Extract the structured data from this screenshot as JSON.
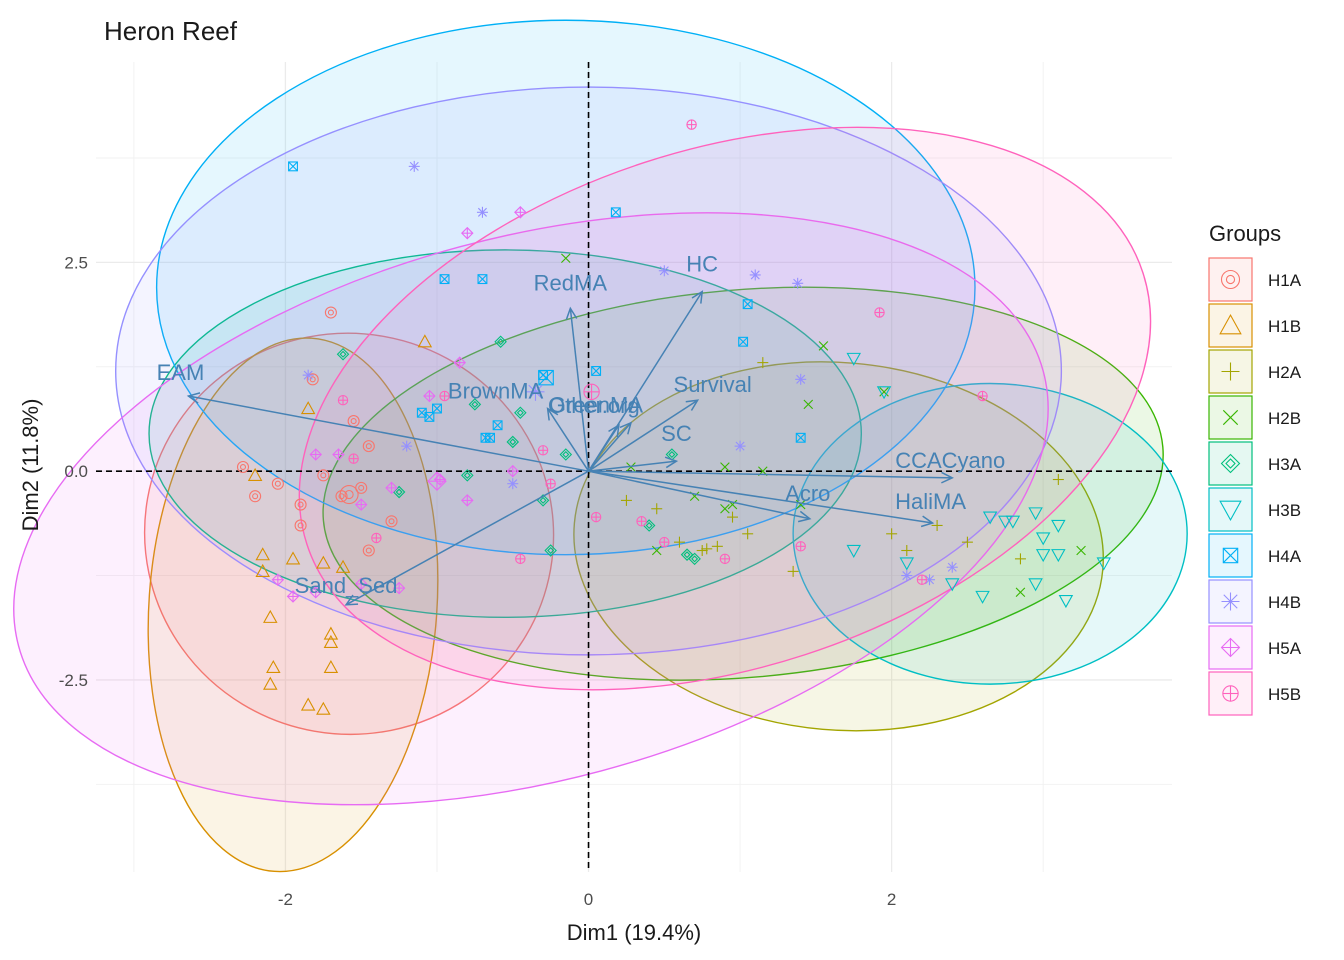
{
  "chart_data": {
    "type": "scatter",
    "title": "Heron Reef",
    "xlabel": "Dim1 (19.4%)",
    "ylabel": "Dim2 (11.8%)",
    "xlim": [
      -3.25,
      3.85
    ],
    "ylim": [
      -4.8,
      4.9
    ],
    "xticks": [
      -2,
      0,
      2
    ],
    "xtick_labels": [
      "-2",
      "0",
      "2"
    ],
    "yticks": [
      2.5,
      0.0,
      -2.5
    ],
    "ytick_labels": [
      "2.5",
      "0.0",
      "-2.5"
    ],
    "grid": true,
    "reference_lines": {
      "x": 0,
      "y": 0,
      "style": "dashed"
    },
    "legend": {
      "title": "Groups",
      "position": "right",
      "entries": [
        {
          "name": "H1A",
          "color": "#F8766D",
          "shape": "circle"
        },
        {
          "name": "H1B",
          "color": "#D89000",
          "shape": "triangle"
        },
        {
          "name": "H2A",
          "color": "#A3A500",
          "shape": "plus"
        },
        {
          "name": "H2B",
          "color": "#39B600",
          "shape": "cross"
        },
        {
          "name": "H3A",
          "color": "#00BF7D",
          "shape": "diamond"
        },
        {
          "name": "H3B",
          "color": "#00BFC4",
          "shape": "triangle-down"
        },
        {
          "name": "H4A",
          "color": "#00B0F6",
          "shape": "square-x"
        },
        {
          "name": "H4B",
          "color": "#9590FF",
          "shape": "star"
        },
        {
          "name": "H5A",
          "color": "#E76BF3",
          "shape": "diamond-plus"
        },
        {
          "name": "H5B",
          "color": "#FF62BC",
          "shape": "circle-plus"
        }
      ]
    },
    "variables": [
      {
        "name": "EAM",
        "x": -2.64,
        "y": 0.9
      },
      {
        "name": "RedMA",
        "x": -0.12,
        "y": 1.95
      },
      {
        "name": "HC",
        "x": 0.75,
        "y": 2.15
      },
      {
        "name": "Other.org",
        "x": 0.2,
        "y": 0.55
      },
      {
        "name": "BrownMA",
        "x": -0.27,
        "y": 0.75
      },
      {
        "name": "Survival",
        "x": 0.72,
        "y": 0.85
      },
      {
        "name": "GreenMA",
        "x": 0.28,
        "y": 0.58
      },
      {
        "name": "SC",
        "x": 0.58,
        "y": 0.12
      },
      {
        "name": "CCACyano",
        "x": 2.4,
        "y": -0.08
      },
      {
        "name": "HaliMA",
        "x": 2.27,
        "y": -0.62
      },
      {
        "name": "Acro",
        "x": 1.46,
        "y": -0.57
      },
      {
        "name": "Sand_Sed",
        "x": -1.6,
        "y": -1.6
      }
    ],
    "ellipses": [
      {
        "group": "H1A",
        "cx": -1.58,
        "cy": -0.75,
        "rx": 1.35,
        "ry": 2.4,
        "angle": -10
      },
      {
        "group": "H1B",
        "cx": -1.95,
        "cy": -1.6,
        "rx": 0.95,
        "ry": 3.2,
        "angle": -4
      },
      {
        "group": "H2A",
        "cx": 1.65,
        "cy": -0.9,
        "rx": 1.75,
        "ry": 2.2,
        "angle": -5
      },
      {
        "group": "H2B",
        "cx": 1.02,
        "cy": -0.15,
        "rx": 2.78,
        "ry": 2.32,
        "angle": 5
      },
      {
        "group": "H3A",
        "cx": -0.55,
        "cy": 0.45,
        "rx": 2.35,
        "ry": 2.2,
        "angle": 0
      },
      {
        "group": "H3B",
        "cx": 2.65,
        "cy": -0.75,
        "rx": 1.3,
        "ry": 1.8,
        "angle": 0
      },
      {
        "group": "H4A",
        "cx": -0.15,
        "cy": 2.2,
        "rx": 2.7,
        "ry": 3.2,
        "angle": 0
      },
      {
        "group": "H4B",
        "cx": 0.0,
        "cy": 1.2,
        "rx": 3.12,
        "ry": 3.4,
        "angle": 0
      },
      {
        "group": "H5A",
        "cx": -0.38,
        "cy": -0.45,
        "rx": 3.5,
        "ry": 3.25,
        "angle": 15
      },
      {
        "group": "H5B",
        "cx": 0.9,
        "cy": 0.75,
        "rx": 2.9,
        "ry": 3.1,
        "angle": 18
      }
    ],
    "points": [
      {
        "group": "H1A",
        "x": -1.63,
        "y": -0.3
      },
      {
        "group": "H1A",
        "x": -1.75,
        "y": -0.05
      },
      {
        "group": "H1A",
        "x": -2.28,
        "y": 0.05
      },
      {
        "group": "H1A",
        "x": -1.9,
        "y": -0.4
      },
      {
        "group": "H1A",
        "x": -1.5,
        "y": -0.2
      },
      {
        "group": "H1A",
        "x": -1.45,
        "y": 0.3
      },
      {
        "group": "H1A",
        "x": -1.7,
        "y": 1.9
      },
      {
        "group": "H1A",
        "x": -2.05,
        "y": -0.15
      },
      {
        "group": "H1A",
        "x": -1.45,
        "y": -0.95
      },
      {
        "group": "H1A",
        "x": -1.9,
        "y": -0.65
      },
      {
        "group": "H1A",
        "x": -2.2,
        "y": -0.3
      },
      {
        "group": "H1A",
        "x": -1.3,
        "y": -0.6
      },
      {
        "group": "H1A",
        "x": -1.82,
        "y": 1.1
      },
      {
        "group": "H1A",
        "x": -1.55,
        "y": 0.6
      },
      {
        "group": "H1B",
        "x": -2.15,
        "y": -1.0
      },
      {
        "group": "H1B",
        "x": -2.15,
        "y": -1.2
      },
      {
        "group": "H1B",
        "x": -1.95,
        "y": -1.05
      },
      {
        "group": "H1B",
        "x": -1.75,
        "y": -1.1
      },
      {
        "group": "H1B",
        "x": -2.1,
        "y": -1.75
      },
      {
        "group": "H1B",
        "x": -2.08,
        "y": -2.35
      },
      {
        "group": "H1B",
        "x": -2.1,
        "y": -2.55
      },
      {
        "group": "H1B",
        "x": -1.75,
        "y": -2.85
      },
      {
        "group": "H1B",
        "x": -1.85,
        "y": -2.8
      },
      {
        "group": "H1B",
        "x": -1.7,
        "y": -2.35
      },
      {
        "group": "H1B",
        "x": -1.7,
        "y": -2.05
      },
      {
        "group": "H1B",
        "x": -1.62,
        "y": -1.15
      },
      {
        "group": "H1B",
        "x": -1.85,
        "y": 0.75
      },
      {
        "group": "H1B",
        "x": -1.08,
        "y": 1.55
      },
      {
        "group": "H1B",
        "x": -2.2,
        "y": -0.05
      },
      {
        "group": "H1B",
        "x": -1.7,
        "y": -1.95
      },
      {
        "group": "H2A",
        "x": 1.15,
        "y": 1.3
      },
      {
        "group": "H2A",
        "x": 0.95,
        "y": -0.55
      },
      {
        "group": "H2A",
        "x": 0.75,
        "y": -0.95
      },
      {
        "group": "H2A",
        "x": 0.85,
        "y": -0.9
      },
      {
        "group": "H2A",
        "x": 1.05,
        "y": -0.75
      },
      {
        "group": "H2A",
        "x": 2.1,
        "y": -0.95
      },
      {
        "group": "H2A",
        "x": 2.3,
        "y": -0.65
      },
      {
        "group": "H2A",
        "x": 2.5,
        "y": -0.85
      },
      {
        "group": "H2A",
        "x": 2.85,
        "y": -1.05
      },
      {
        "group": "H2A",
        "x": 2.0,
        "y": -0.75
      },
      {
        "group": "H2A",
        "x": 1.35,
        "y": -1.2
      },
      {
        "group": "H2A",
        "x": 0.6,
        "y": -0.85
      },
      {
        "group": "H2A",
        "x": 0.45,
        "y": -0.45
      },
      {
        "group": "H2A",
        "x": 0.25,
        "y": -0.35
      },
      {
        "group": "H2A",
        "x": 3.1,
        "y": -0.1
      },
      {
        "group": "H2A",
        "x": 0.78,
        "y": -0.93
      },
      {
        "group": "H2B",
        "x": -0.15,
        "y": 2.55
      },
      {
        "group": "H2B",
        "x": 0.9,
        "y": 0.05
      },
      {
        "group": "H2B",
        "x": 1.55,
        "y": 1.5
      },
      {
        "group": "H2B",
        "x": 1.95,
        "y": 0.95
      },
      {
        "group": "H2B",
        "x": 2.85,
        "y": -1.45
      },
      {
        "group": "H2B",
        "x": 3.25,
        "y": -0.95
      },
      {
        "group": "H2B",
        "x": 1.4,
        "y": -0.4
      },
      {
        "group": "H2B",
        "x": 0.45,
        "y": -0.95
      },
      {
        "group": "H2B",
        "x": 0.95,
        "y": -0.4
      },
      {
        "group": "H2B",
        "x": 1.45,
        "y": 0.8
      },
      {
        "group": "H2B",
        "x": 0.9,
        "y": -0.45
      },
      {
        "group": "H2B",
        "x": 1.15,
        "y": 0.0
      },
      {
        "group": "H2B",
        "x": 0.28,
        "y": 0.05
      },
      {
        "group": "H2B",
        "x": 0.7,
        "y": -0.3
      },
      {
        "group": "H3A",
        "x": -0.75,
        "y": 0.8
      },
      {
        "group": "H3A",
        "x": -0.58,
        "y": 1.55
      },
      {
        "group": "H3A",
        "x": -0.45,
        "y": 0.7
      },
      {
        "group": "H3A",
        "x": -0.5,
        "y": 0.35
      },
      {
        "group": "H3A",
        "x": -0.3,
        "y": -0.35
      },
      {
        "group": "H3A",
        "x": -0.8,
        "y": -0.05
      },
      {
        "group": "H3A",
        "x": -0.15,
        "y": 0.2
      },
      {
        "group": "H3A",
        "x": 0.4,
        "y": -0.65
      },
      {
        "group": "H3A",
        "x": 0.7,
        "y": -1.05
      },
      {
        "group": "H3A",
        "x": 0.65,
        "y": -1.0
      },
      {
        "group": "H3A",
        "x": -0.25,
        "y": -0.95
      },
      {
        "group": "H3A",
        "x": -1.62,
        "y": 1.4
      },
      {
        "group": "H3A",
        "x": -1.25,
        "y": -0.25
      },
      {
        "group": "H3A",
        "x": 0.55,
        "y": 0.2
      },
      {
        "group": "H3B",
        "x": 1.75,
        "y": 1.35
      },
      {
        "group": "H3B",
        "x": 1.95,
        "y": 0.95
      },
      {
        "group": "H3B",
        "x": 2.65,
        "y": -0.55
      },
      {
        "group": "H3B",
        "x": 2.8,
        "y": -0.6
      },
      {
        "group": "H3B",
        "x": 3.0,
        "y": -0.8
      },
      {
        "group": "H3B",
        "x": 3.1,
        "y": -0.65
      },
      {
        "group": "H3B",
        "x": 3.0,
        "y": -1.0
      },
      {
        "group": "H3B",
        "x": 2.4,
        "y": -1.35
      },
      {
        "group": "H3B",
        "x": 2.6,
        "y": -1.5
      },
      {
        "group": "H3B",
        "x": 2.95,
        "y": -1.35
      },
      {
        "group": "H3B",
        "x": 3.1,
        "y": -1.0
      },
      {
        "group": "H3B",
        "x": 3.4,
        "y": -1.1
      },
      {
        "group": "H3B",
        "x": 3.15,
        "y": -1.55
      },
      {
        "group": "H3B",
        "x": 2.95,
        "y": -0.5
      },
      {
        "group": "H3B",
        "x": 1.75,
        "y": -0.95
      },
      {
        "group": "H3B",
        "x": 2.1,
        "y": -1.1
      },
      {
        "group": "H3B",
        "x": 2.75,
        "y": -0.6
      },
      {
        "group": "H4A",
        "x": -1.95,
        "y": 3.65
      },
      {
        "group": "H4A",
        "x": 0.18,
        "y": 3.1
      },
      {
        "group": "H4A",
        "x": -0.95,
        "y": 2.3
      },
      {
        "group": "H4A",
        "x": -0.7,
        "y": 2.3
      },
      {
        "group": "H4A",
        "x": -1.05,
        "y": 0.65
      },
      {
        "group": "H4A",
        "x": -1.0,
        "y": 0.75
      },
      {
        "group": "H4A",
        "x": -0.6,
        "y": 0.55
      },
      {
        "group": "H4A",
        "x": -0.68,
        "y": 0.4
      },
      {
        "group": "H4A",
        "x": -0.65,
        "y": 0.4
      },
      {
        "group": "H4A",
        "x": 1.02,
        "y": 1.55
      },
      {
        "group": "H4A",
        "x": 1.4,
        "y": 0.4
      },
      {
        "group": "H4A",
        "x": 1.05,
        "y": 2.0
      },
      {
        "group": "H4A",
        "x": -0.3,
        "y": 1.15
      },
      {
        "group": "H4A",
        "x": 0.05,
        "y": 1.2
      },
      {
        "group": "H4A",
        "x": -1.1,
        "y": 0.7
      },
      {
        "group": "H4B",
        "x": -1.15,
        "y": 3.65
      },
      {
        "group": "H4B",
        "x": -0.7,
        "y": 3.1
      },
      {
        "group": "H4B",
        "x": 0.5,
        "y": 2.4
      },
      {
        "group": "H4B",
        "x": 1.1,
        "y": 2.35
      },
      {
        "group": "H4B",
        "x": 1.38,
        "y": 2.25
      },
      {
        "group": "H4B",
        "x": -1.85,
        "y": 1.15
      },
      {
        "group": "H4B",
        "x": -1.2,
        "y": 0.3
      },
      {
        "group": "H4B",
        "x": 1.0,
        "y": 0.3
      },
      {
        "group": "H4B",
        "x": 1.4,
        "y": 1.1
      },
      {
        "group": "H4B",
        "x": 2.25,
        "y": -1.3
      },
      {
        "group": "H4B",
        "x": 2.4,
        "y": -1.15
      },
      {
        "group": "H4B",
        "x": 2.1,
        "y": -1.25
      },
      {
        "group": "H4B",
        "x": -0.5,
        "y": -0.15
      },
      {
        "group": "H5A",
        "x": -0.8,
        "y": 2.85
      },
      {
        "group": "H5A",
        "x": -0.45,
        "y": 3.1
      },
      {
        "group": "H5A",
        "x": -0.85,
        "y": 1.3
      },
      {
        "group": "H5A",
        "x": -1.05,
        "y": 0.9
      },
      {
        "group": "H5A",
        "x": -1.8,
        "y": 0.2
      },
      {
        "group": "H5A",
        "x": -1.65,
        "y": 0.2
      },
      {
        "group": "H5A",
        "x": -1.3,
        "y": -0.2
      },
      {
        "group": "H5A",
        "x": -1.5,
        "y": -0.4
      },
      {
        "group": "H5A",
        "x": -1.25,
        "y": -1.4
      },
      {
        "group": "H5A",
        "x": -1.5,
        "y": -1.35
      },
      {
        "group": "H5A",
        "x": -1.95,
        "y": -1.5
      },
      {
        "group": "H5A",
        "x": -1.8,
        "y": -1.45
      },
      {
        "group": "H5A",
        "x": -2.05,
        "y": -1.3
      },
      {
        "group": "H5A",
        "x": -0.8,
        "y": -0.35
      },
      {
        "group": "H5A",
        "x": -0.98,
        "y": -0.1
      },
      {
        "group": "H5A",
        "x": -0.5,
        "y": 0.0
      },
      {
        "group": "H5B",
        "x": 0.68,
        "y": 4.15
      },
      {
        "group": "H5B",
        "x": 1.92,
        "y": 1.9
      },
      {
        "group": "H5B",
        "x": 2.6,
        "y": 0.9
      },
      {
        "group": "H5B",
        "x": -1.62,
        "y": 0.85
      },
      {
        "group": "H5B",
        "x": -1.55,
        "y": 0.15
      },
      {
        "group": "H5B",
        "x": -1.4,
        "y": -0.8
      },
      {
        "group": "H5B",
        "x": -0.45,
        "y": -1.05
      },
      {
        "group": "H5B",
        "x": 0.35,
        "y": -0.6
      },
      {
        "group": "H5B",
        "x": 0.5,
        "y": -0.85
      },
      {
        "group": "H5B",
        "x": 0.9,
        "y": -1.05
      },
      {
        "group": "H5B",
        "x": 1.4,
        "y": -0.9
      },
      {
        "group": "H5B",
        "x": 2.2,
        "y": -1.3
      },
      {
        "group": "H5B",
        "x": -0.95,
        "y": 0.9
      },
      {
        "group": "H5B",
        "x": -0.3,
        "y": 0.25
      },
      {
        "group": "H5B",
        "x": -0.25,
        "y": -0.15
      },
      {
        "group": "H5B",
        "x": 0.05,
        "y": -0.55
      }
    ],
    "centroids": [
      {
        "group": "H1A",
        "x": -1.58,
        "y": -0.28
      },
      {
        "group": "H4A",
        "x": -0.28,
        "y": 1.12
      },
      {
        "group": "H5A",
        "x": -1.0,
        "y": -0.12
      },
      {
        "group": "H4B",
        "x": -0.35,
        "y": 0.95
      },
      {
        "group": "H5B",
        "x": 0.02,
        "y": 0.95
      }
    ]
  }
}
